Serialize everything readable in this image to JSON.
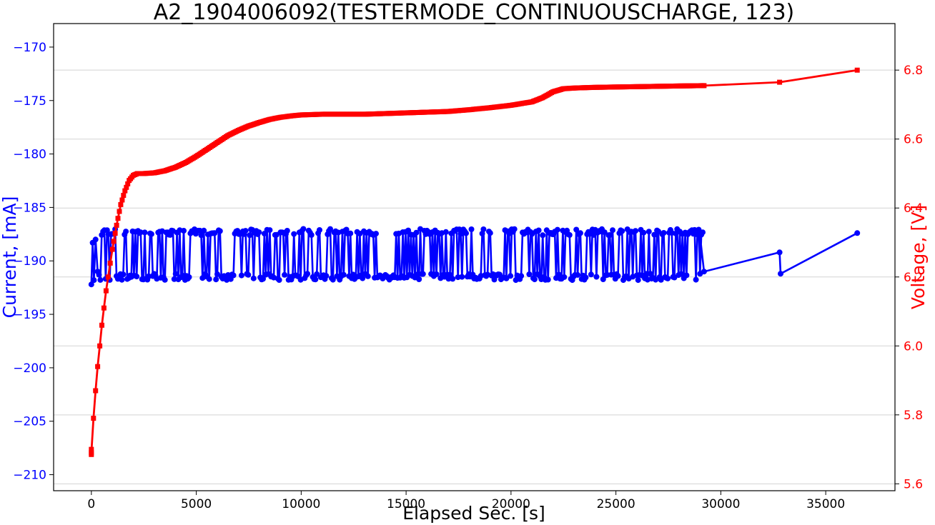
{
  "chart_data": {
    "type": "line",
    "title": "A2_1904006092(TESTERMODE_CONTINUOUSCHARGE, 123)",
    "xlabel": "Elapsed Sec. [s]",
    "ylabel_left": "Current, [mA]",
    "ylabel_right": "Voltage, [V]",
    "xlim": [
      -1800,
      38300
    ],
    "ylim_left": [
      -211.5,
      -167.8
    ],
    "ylim_right": [
      5.58,
      6.935
    ],
    "x_ticks": [
      0,
      5000,
      10000,
      15000,
      20000,
      25000,
      30000,
      35000
    ],
    "y_left_ticks": [
      -170,
      -175,
      -180,
      -185,
      -190,
      -195,
      -200,
      -205,
      -210
    ],
    "y_right_ticks": [
      5.6,
      5.8,
      6.0,
      6.2,
      6.4,
      6.6,
      6.8
    ],
    "grid": "horizontal lines at right-axis ticks",
    "colors": {
      "current": "#0000ff",
      "voltage": "#ff0000",
      "grid": "#d3d3d3",
      "axis": "#000000"
    },
    "series": [
      {
        "axis": "left",
        "marker": "circle",
        "color": "#0000ff",
        "pattern": "current alternates between about -187.3 and -191.5 mA from 0 to 29200 s",
        "oscillation": {
          "x_start": 0,
          "x_end": 29200,
          "high": -187.3,
          "low": -191.5,
          "approx_points": 450
        },
        "x": [
          0,
          60,
          120,
          200,
          300,
          29000,
          29200,
          32800,
          32850,
          36500
        ],
        "y": [
          -192.2,
          -188.3,
          -191.8,
          -188.0,
          -191.0,
          -187.5,
          -191.0,
          -189.2,
          -191.2,
          -187.4
        ]
      },
      {
        "axis": "right",
        "marker": "square",
        "color": "#ff0000",
        "x": [
          0,
          100,
          200,
          300,
          400,
          500,
          600,
          700,
          800,
          900,
          1000,
          1200,
          1400,
          1600,
          1800,
          2000,
          2200,
          2500,
          3000,
          3500,
          4000,
          4500,
          5000,
          5500,
          6000,
          6500,
          7000,
          7500,
          8000,
          8500,
          9000,
          9500,
          10000,
          11000,
          12000,
          13000,
          14000,
          15000,
          16000,
          17000,
          18000,
          19000,
          20000,
          21000,
          21500,
          22000,
          22500,
          23000,
          24000,
          25000,
          26000,
          27000,
          28000,
          29200,
          32800,
          36500
        ],
        "y": [
          5.69,
          5.79,
          5.87,
          5.94,
          6.0,
          6.06,
          6.11,
          6.16,
          6.2,
          6.24,
          6.28,
          6.35,
          6.41,
          6.45,
          6.48,
          6.495,
          6.5,
          6.5,
          6.502,
          6.508,
          6.518,
          6.532,
          6.55,
          6.57,
          6.59,
          6.61,
          6.625,
          6.638,
          6.648,
          6.657,
          6.663,
          6.667,
          6.67,
          6.672,
          6.672,
          6.672,
          6.674,
          6.676,
          6.678,
          6.68,
          6.685,
          6.691,
          6.698,
          6.708,
          6.72,
          6.737,
          6.746,
          6.748,
          6.75,
          6.751,
          6.752,
          6.753,
          6.754,
          6.755,
          6.765,
          6.8
        ]
      }
    ]
  }
}
